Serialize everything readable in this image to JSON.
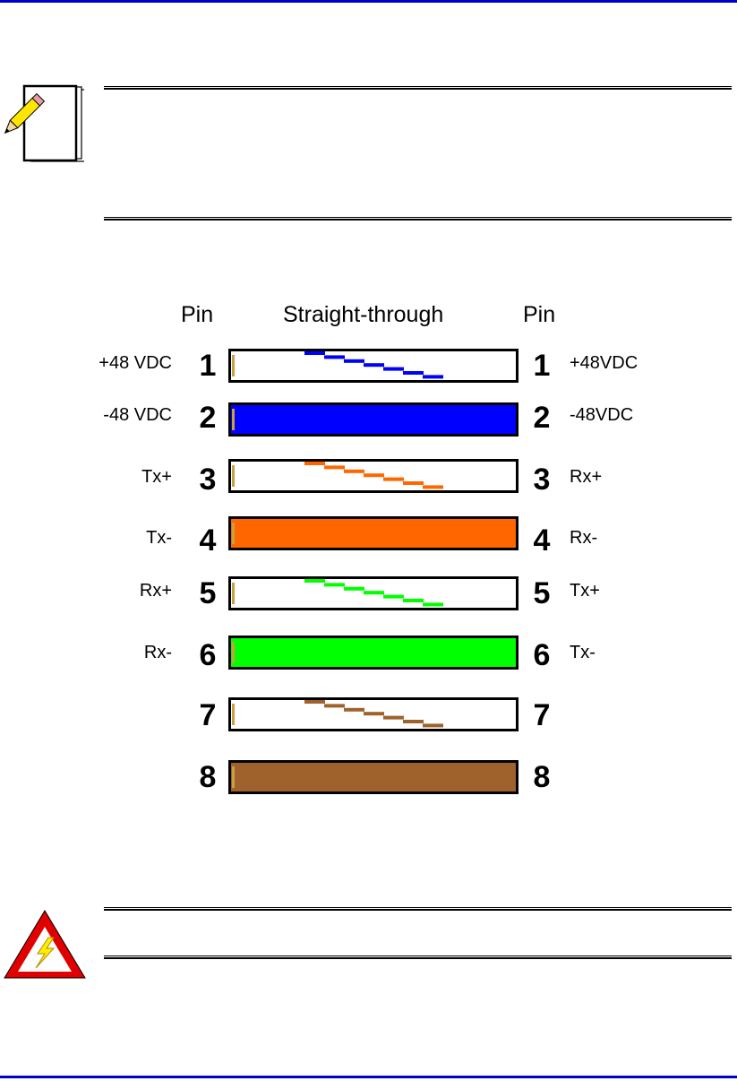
{
  "diagram": {
    "header": {
      "left": "Pin",
      "middle": "Straight-through",
      "right": "Pin"
    },
    "wires": [
      {
        "pin_left": "1",
        "pin_right": "1",
        "signal_left": "+48 VDC",
        "signal_right": "+48VDC",
        "color": "#0000ff",
        "pattern": "striped"
      },
      {
        "pin_left": "2",
        "pin_right": "2",
        "signal_left": "-48 VDC",
        "signal_right": "-48VDC",
        "color": "#0000ff",
        "pattern": "solid"
      },
      {
        "pin_left": "3",
        "pin_right": "3",
        "signal_left": "Tx+",
        "signal_right": "Rx+",
        "color": "#ff6600",
        "pattern": "striped"
      },
      {
        "pin_left": "4",
        "pin_right": "4",
        "signal_left": "Tx-",
        "signal_right": "Rx-",
        "color": "#ff6600",
        "pattern": "solid"
      },
      {
        "pin_left": "5",
        "pin_right": "5",
        "signal_left": "Rx+",
        "signal_right": "Tx+",
        "color": "#00ff00",
        "pattern": "striped"
      },
      {
        "pin_left": "6",
        "pin_right": "6",
        "signal_left": "Rx-",
        "signal_right": "Tx-",
        "color": "#00ff00",
        "pattern": "solid"
      },
      {
        "pin_left": "7",
        "pin_right": "7",
        "signal_left": "",
        "signal_right": "",
        "color": "#a0622d",
        "pattern": "striped"
      },
      {
        "pin_left": "8",
        "pin_right": "8",
        "signal_left": "",
        "signal_right": "",
        "color": "#a0622d",
        "pattern": "solid"
      }
    ]
  },
  "icons": {
    "note": "note-pencil-icon",
    "warning": "electrical-warning-icon"
  },
  "colors": {
    "page_rule": "#0000c8",
    "warning_red": "#e00000",
    "warning_bolt": "#ffee00"
  }
}
